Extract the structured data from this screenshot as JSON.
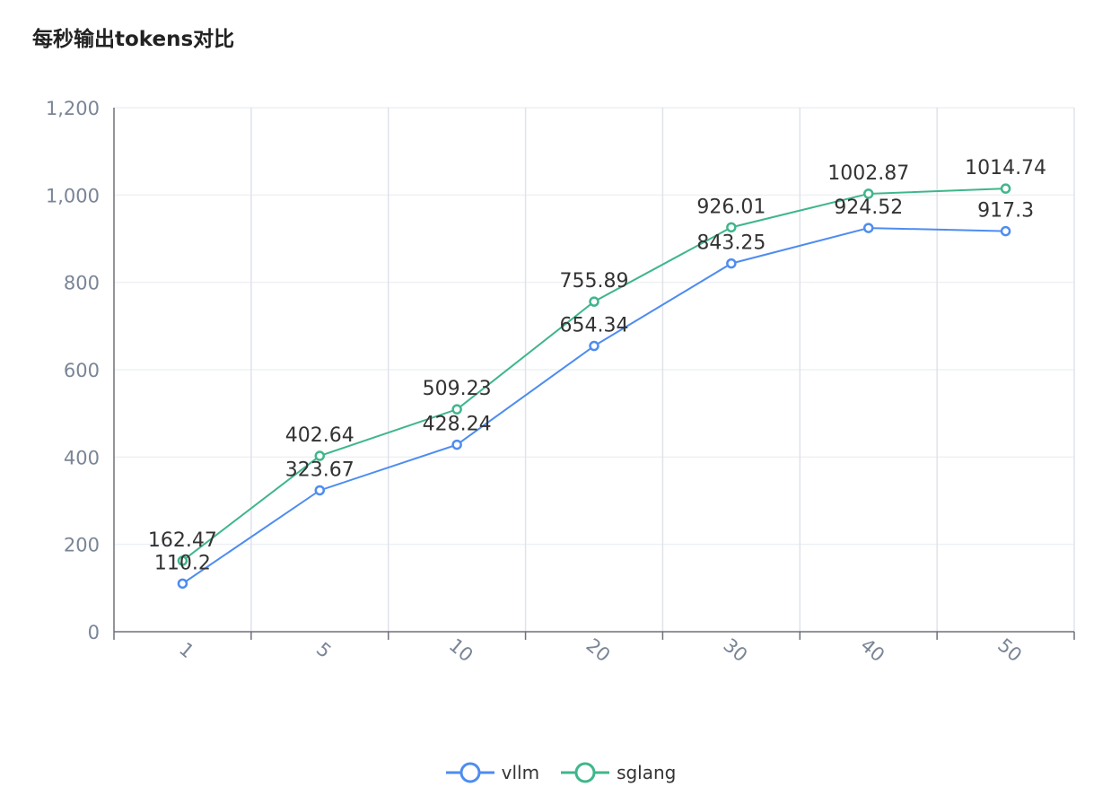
{
  "title": "每秒输出tokens对比",
  "chart_data": {
    "type": "line",
    "title": "每秒输出tokens对比",
    "categories": [
      "1",
      "5",
      "10",
      "20",
      "30",
      "40",
      "50"
    ],
    "ylim": [
      0,
      1200
    ],
    "yticks": [
      0,
      200,
      400,
      600,
      800,
      1000,
      1200
    ],
    "ytick_labels": [
      "0",
      "200",
      "400",
      "600",
      "800",
      "1,000",
      "1,200"
    ],
    "grid": true,
    "legend_position": "bottom-center",
    "series": [
      {
        "name": "vllm",
        "color": "#4e8cf0",
        "values": [
          110.2,
          323.67,
          428.24,
          654.34,
          843.25,
          924.52,
          917.3
        ],
        "labels": [
          "110.2",
          "323.67",
          "428.24",
          "654.34",
          "843.25",
          "924.52",
          "917.3"
        ]
      },
      {
        "name": "sglang",
        "color": "#3fb68b",
        "values": [
          162.47,
          402.64,
          509.23,
          755.89,
          926.01,
          1002.87,
          1014.74
        ],
        "labels": [
          "162.47",
          "402.64",
          "509.23",
          "755.89",
          "926.01",
          "1002.87",
          "1014.74"
        ]
      }
    ]
  }
}
